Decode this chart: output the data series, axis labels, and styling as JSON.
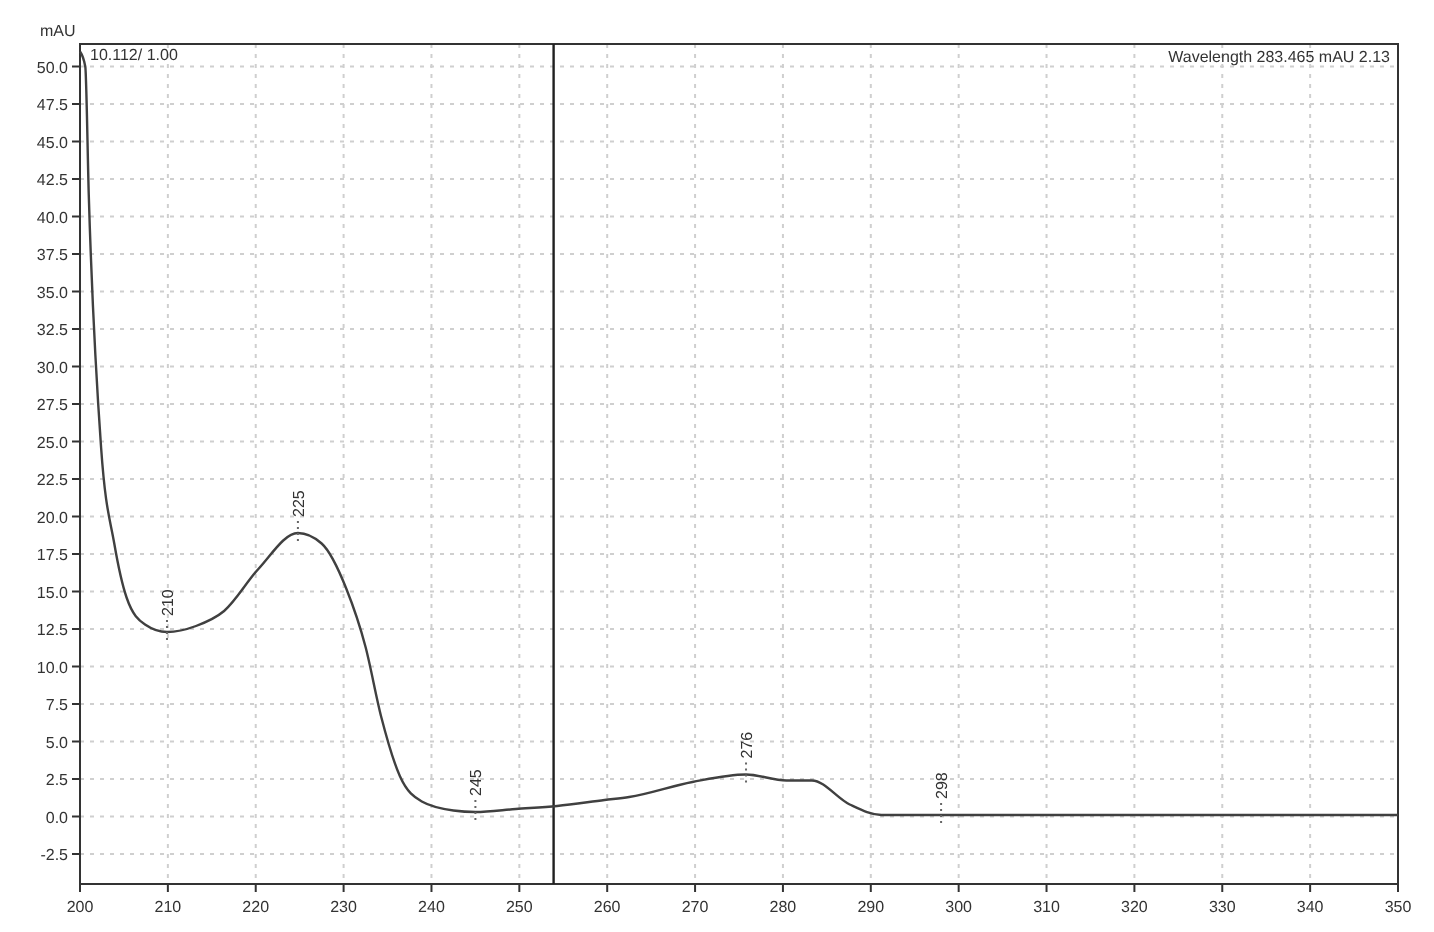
{
  "chart_data": {
    "type": "line",
    "ylabel": "mAU",
    "x": [
      200,
      200.6,
      201,
      202.4,
      203.9,
      205.3,
      207.4,
      209.9,
      213.2,
      216.4,
      220.3,
      224.8,
      227.5,
      230.3,
      232.5,
      234.3,
      236.4,
      238.9,
      242.5,
      245,
      249.6,
      254.3,
      259.7,
      262.5,
      269.7,
      275.8,
      280.4,
      283.3,
      287.6,
      291.2,
      300,
      320,
      350
    ],
    "series": [
      {
        "color": "#404040",
        "values": [
          51,
          50,
          41.4,
          24.6,
          18.2,
          14.6,
          12.8,
          12.3,
          12.7,
          13.7,
          16.5,
          18.9,
          18.2,
          15.2,
          11.3,
          6.6,
          2.7,
          1.0,
          0.4,
          0.3,
          0.5,
          0.7,
          1.1,
          1.3,
          2.3,
          2.8,
          2.4,
          2.4,
          0.8,
          0.1,
          0.1,
          0.1,
          0.1
        ]
      }
    ],
    "xlim": [
      200,
      350
    ],
    "xticks": [
      200,
      210,
      220,
      230,
      240,
      250,
      260,
      270,
      280,
      290,
      300,
      310,
      320,
      330,
      340,
      350
    ],
    "ylim": [
      -4.5,
      51.5
    ],
    "yticks": [
      {
        "value": -2.5,
        "label": "-2.5"
      },
      {
        "value": 0,
        "label": "0.0"
      },
      {
        "value": 2.5,
        "label": "2.5"
      },
      {
        "value": 5,
        "label": "5.0"
      },
      {
        "value": 7.5,
        "label": "7.5"
      },
      {
        "value": 10,
        "label": "10.0"
      },
      {
        "value": 12.5,
        "label": "12.5"
      },
      {
        "value": 15,
        "label": "15.0"
      },
      {
        "value": 17.5,
        "label": "17.5"
      },
      {
        "value": 20,
        "label": "20.0"
      },
      {
        "value": 22.5,
        "label": "22.5"
      },
      {
        "value": 25,
        "label": "25.0"
      },
      {
        "value": 27.5,
        "label": "27.5"
      },
      {
        "value": 30,
        "label": "30.0"
      },
      {
        "value": 32.5,
        "label": "32.5"
      },
      {
        "value": 35,
        "label": "35.0"
      },
      {
        "value": 37.5,
        "label": "37.5"
      },
      {
        "value": 40,
        "label": "40.0"
      },
      {
        "value": 42.5,
        "label": "42.5"
      },
      {
        "value": 45,
        "label": "45.0"
      },
      {
        "value": 47.5,
        "label": "47.5"
      },
      {
        "value": 50,
        "label": "50.0"
      }
    ],
    "grid": true,
    "line_style": "solid",
    "marker": "none",
    "ref_lines": [
      {
        "axis": "x",
        "value": 253.9,
        "color": "#202020"
      }
    ],
    "annotations": [
      "10.112/ 1.00",
      "Wavelength 283.465 mAU 2.13",
      {
        "text": "210",
        "x": 209.9,
        "y": 12.3
      },
      {
        "text": "225",
        "x": 224.8,
        "y": 18.9
      },
      {
        "text": "245",
        "x": 245,
        "y": 0.3
      },
      {
        "text": "276",
        "x": 275.8,
        "y": 2.8
      },
      {
        "text": "298",
        "x": 298,
        "y": 0.1
      }
    ]
  }
}
